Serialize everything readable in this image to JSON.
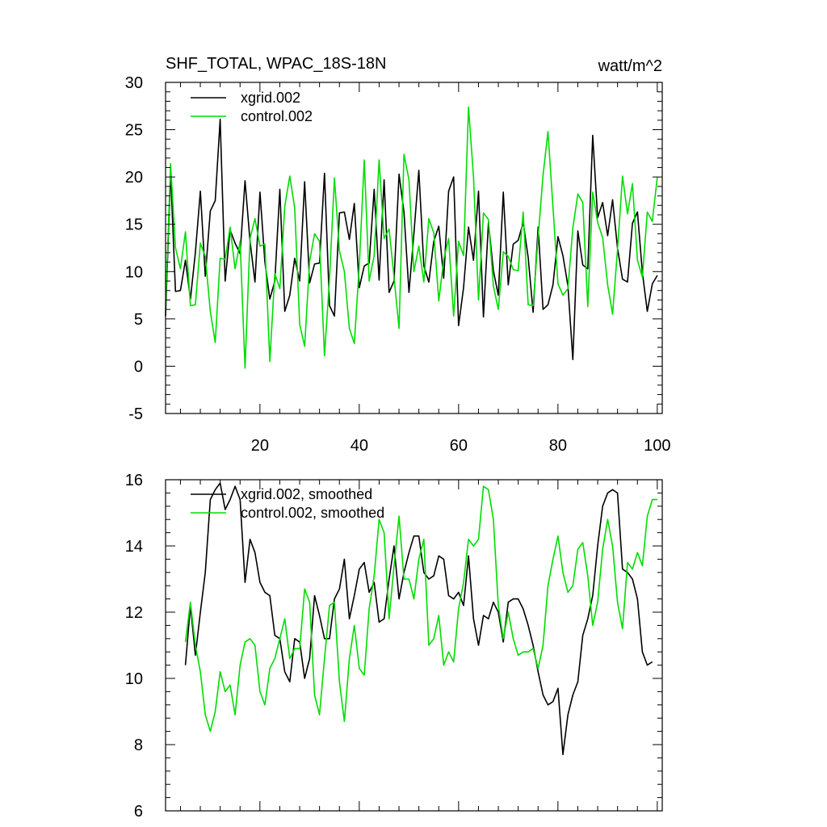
{
  "chart_data": [
    {
      "type": "line",
      "title": "SHF_TOTAL, WPAC_18S-18N",
      "units": "watt/m^2",
      "xlim": [
        1,
        101
      ],
      "ylim": [
        -5,
        30
      ],
      "xticks": [
        20,
        40,
        60,
        80,
        100
      ],
      "yticks": [
        -5,
        0,
        5,
        10,
        15,
        20,
        25,
        30
      ],
      "xtick_labels": [
        "20",
        "40",
        "60",
        "80",
        "100"
      ],
      "ytick_labels": [
        "-5",
        "0",
        "5",
        "10",
        "15",
        "20",
        "25",
        "30"
      ],
      "legend_position": "top-left",
      "series": [
        {
          "name": "xgrid.002",
          "color": "#000000",
          "x_start": 1,
          "values": [
            5.3,
            20.5,
            7.9,
            8.0,
            11.2,
            7.1,
            12.0,
            18.5,
            9.5,
            16.4,
            17.5,
            26.1,
            9.0,
            14.4,
            13.0,
            11.9,
            19.6,
            13.2,
            8.9,
            18.4,
            11.0,
            7.1,
            9.0,
            18.7,
            5.8,
            7.5,
            11.4,
            9.0,
            19.5,
            8.8,
            10.8,
            10.9,
            20.4,
            6.4,
            5.3,
            16.2,
            16.3,
            13.4,
            17.2,
            8.3,
            10.6,
            10.9,
            18.7,
            9.1,
            19.7,
            7.8,
            9.0,
            20.3,
            16.3,
            7.8,
            14.0,
            20.7,
            10.6,
            8.9,
            13.2,
            14.8,
            9.3,
            18.5,
            20.0,
            4.3,
            8.3,
            14.7,
            11.2,
            18.5,
            5.2,
            15.2,
            10.1,
            7.5,
            18.4,
            8.6,
            12.9,
            13.3,
            15.2,
            11.5,
            5.7,
            14.7,
            6.0,
            6.5,
            8.6,
            13.7,
            11.7,
            8.5,
            0.7,
            14.3,
            10.7,
            10.3,
            24.4,
            15.7,
            17.3,
            13.8,
            17.6,
            12.5,
            9.2,
            8.9,
            15.1,
            16.3,
            9.9,
            5.8,
            8.7,
            9.6
          ]
        },
        {
          "name": "control.002",
          "color": "#00dd00",
          "x_start": 1,
          "values": [
            6.2,
            21.4,
            12.5,
            10.3,
            14.2,
            6.4,
            6.5,
            13.0,
            11.6,
            5.8,
            2.5,
            11.4,
            11.3,
            14.7,
            10.3,
            13.2,
            -0.2,
            13.5,
            15.6,
            12.7,
            12.9,
            0.5,
            9.8,
            8.2,
            16.9,
            20.1,
            16.7,
            4.4,
            2.1,
            11.1,
            14.0,
            13.2,
            1.1,
            9.2,
            19.9,
            12.2,
            10.0,
            4.0,
            2.4,
            10.7,
            21.8,
            9.0,
            11.7,
            21.8,
            13.5,
            14.5,
            9.4,
            4.0,
            22.4,
            19.7,
            10.0,
            12.7,
            8.9,
            15.6,
            14.1,
            6.9,
            11.3,
            13.5,
            5.3,
            13.2,
            11.7,
            27.4,
            20.0,
            7.0,
            16.2,
            15.5,
            8.5,
            6.0,
            12.1,
            11.6,
            10.2,
            10.1,
            16.3,
            6.5,
            6.4,
            13.6,
            20.2,
            24.8,
            16.8,
            8.7,
            7.5,
            8.2,
            14.6,
            18.2,
            17.3,
            6.3,
            18.4,
            15.2,
            13.6,
            8.6,
            5.5,
            12.3,
            20.1,
            16.1,
            19.3,
            11.2,
            9.4,
            16.3,
            15.3,
            20.0
          ]
        }
      ]
    },
    {
      "type": "line",
      "title": "",
      "xlim": [
        1,
        101
      ],
      "ylim": [
        6,
        16
      ],
      "xticks": [
        20,
        40,
        60,
        80,
        100
      ],
      "yticks": [
        6,
        8,
        10,
        12,
        14,
        16
      ],
      "ytick_labels": [
        "6",
        "8",
        "10",
        "12",
        "14",
        "16"
      ],
      "legend_position": "top-left",
      "series": [
        {
          "name": "xgrid.002, smoothed",
          "color": "#000000",
          "x_start": 5,
          "values": [
            10.4,
            12.2,
            10.7,
            12.0,
            13.2,
            15.4,
            15.7,
            15.9,
            15.1,
            15.4,
            15.8,
            15.4,
            12.9,
            14.2,
            13.8,
            12.9,
            12.6,
            12.5,
            11.3,
            11.2,
            10.2,
            9.9,
            11.2,
            11.1,
            10.0,
            10.6,
            12.5,
            11.9,
            11.2,
            11.2,
            12.4,
            12.7,
            13.6,
            11.8,
            12.5,
            13.3,
            13.5,
            12.6,
            12.9,
            11.7,
            11.8,
            13.0,
            14.0,
            12.4,
            13.2,
            13.8,
            14.3,
            14.3,
            13.2,
            13.0,
            13.1,
            13.7,
            13.6,
            12.5,
            12.4,
            12.6,
            12.2,
            13.7,
            11.8,
            11.0,
            11.9,
            11.8,
            12.3,
            12.0,
            11.1,
            12.3,
            12.4,
            12.4,
            12.1,
            11.6,
            11.0,
            10.2,
            9.5,
            9.2,
            9.3,
            9.7,
            7.7,
            8.9,
            9.5,
            9.9,
            11.3,
            11.8,
            12.5,
            14.0,
            15.2,
            15.6,
            15.7,
            15.6,
            13.3,
            13.2,
            13.0,
            12.4,
            10.8,
            10.4,
            10.5
          ]
        },
        {
          "name": "control.002, smoothed",
          "color": "#00dd00",
          "x_start": 5,
          "values": [
            11.1,
            12.3,
            11.0,
            10.2,
            8.9,
            8.4,
            9.0,
            10.2,
            9.6,
            9.8,
            8.9,
            10.4,
            11.1,
            11.2,
            11.0,
            9.6,
            9.2,
            10.3,
            10.6,
            11.2,
            11.8,
            10.6,
            10.9,
            10.9,
            12.7,
            12.3,
            9.5,
            8.9,
            10.6,
            12.2,
            12.3,
            9.9,
            8.7,
            10.6,
            11.6,
            10.3,
            10.1,
            12.1,
            13.1,
            14.8,
            14.4,
            11.8,
            13.4,
            14.9,
            13.0,
            13.0,
            12.4,
            13.6,
            14.2,
            11.0,
            11.2,
            11.9,
            10.4,
            10.8,
            10.5,
            12.1,
            12.9,
            14.2,
            14.0,
            14.2,
            15.8,
            15.7,
            14.8,
            12.2,
            11.2,
            12.0,
            11.2,
            10.7,
            10.8,
            10.8,
            10.9,
            10.3,
            11.0,
            12.8,
            13.6,
            14.3,
            13.2,
            12.6,
            12.8,
            13.9,
            14.1,
            13.1,
            11.6,
            12.3,
            13.9,
            14.8,
            14.0,
            12.3,
            11.5,
            13.5,
            13.3,
            13.8,
            13.4,
            14.9,
            15.4,
            15.4
          ]
        }
      ]
    }
  ]
}
